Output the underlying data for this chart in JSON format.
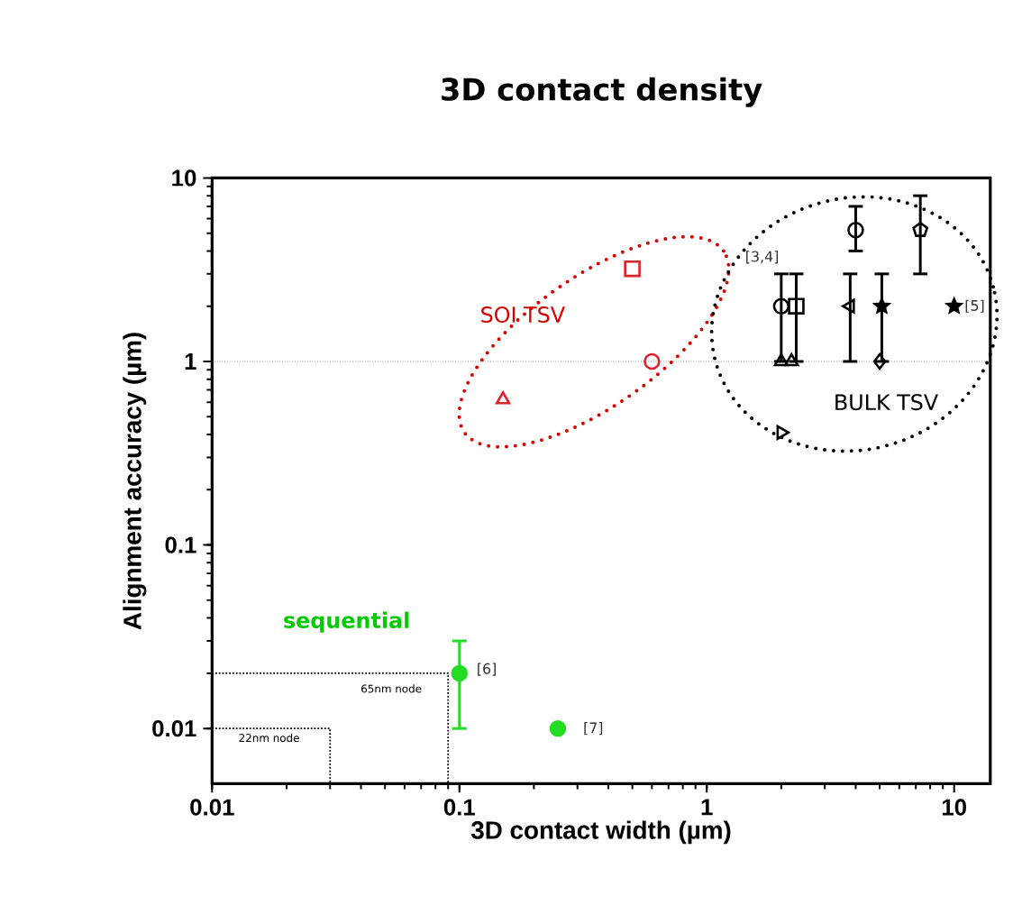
{
  "chart_data": {
    "type": "scatter",
    "title": "3D contact density",
    "xlabel": "3D contact width (µm)",
    "ylabel": "Alignment accuracy (µm)",
    "log": "xy",
    "xlim": [
      0.01,
      14
    ],
    "ylim": [
      0.005,
      10
    ],
    "xticks": [
      0.01,
      0.1,
      1,
      10
    ],
    "yticks": [
      0.01,
      0.1,
      1,
      10
    ],
    "ref_lines": [
      {
        "axis": "y",
        "value": 1,
        "color": "#555555",
        "line_style": "dotted"
      }
    ],
    "series": [
      {
        "color": "#e0202a",
        "marker": "triangle",
        "x": [
          0.15
        ],
        "values": [
          0.62
        ]
      },
      {
        "color": "#e0202a",
        "marker": "square",
        "x": [
          0.5
        ],
        "values": [
          3.2
        ]
      },
      {
        "color": "#e0202a",
        "marker": "circle",
        "x": [
          0.6
        ],
        "values": [
          1
        ]
      },
      {
        "color": "#000000",
        "marker": "circle",
        "x": [
          2
        ],
        "values": [
          2
        ],
        "errors": [
          [
            1,
            3
          ]
        ]
      },
      {
        "color": "#000000",
        "marker": "square",
        "x": [
          2.3
        ],
        "values": [
          2
        ],
        "errors": [
          [
            1,
            3
          ]
        ]
      },
      {
        "color": "#000000",
        "marker": "triangle",
        "x": [
          2,
          2.2
        ],
        "values": [
          1,
          1
        ]
      },
      {
        "color": "#000000",
        "marker": "triangle-left",
        "x": [
          3.8
        ],
        "values": [
          2
        ],
        "errors": [
          [
            1,
            3
          ]
        ]
      },
      {
        "color": "#000000",
        "marker": "star",
        "x": [
          5.1
        ],
        "values": [
          2
        ],
        "errors": [
          [
            1,
            3
          ]
        ]
      },
      {
        "color": "#000000",
        "marker": "diamond",
        "x": [
          5
        ],
        "values": [
          1
        ]
      },
      {
        "color": "#000000",
        "marker": "circle",
        "x": [
          4
        ],
        "values": [
          5.2
        ],
        "errors": [
          [
            4,
            7
          ]
        ]
      },
      {
        "color": "#000000",
        "x": [
          7.3
        ],
        "values": [
          5.2
        ],
        "errors": [
          [
            3,
            8
          ]
        ]
      },
      {
        "color": "#000000",
        "marker": "star",
        "x": [
          10
        ],
        "values": [
          2
        ]
      },
      {
        "color": "#000000",
        "marker": "triangle-right",
        "x": [
          2
        ],
        "values": [
          0.41
        ]
      },
      {
        "color": "#22dd22",
        "marker": "filled circle",
        "x": [
          0.1
        ],
        "values": [
          0.02
        ],
        "errors": [
          [
            0.01,
            0.03
          ]
        ]
      },
      {
        "color": "#22dd22",
        "marker": "filled circle",
        "x": [
          0.25
        ],
        "values": [
          0.01
        ]
      },
      {
        "type": "line",
        "color": "#000000",
        "marker": "none",
        "line_style": "dotted",
        "x": [
          0.01,
          0.09,
          0.09
        ],
        "values": [
          0.02,
          0.02,
          0.005
        ]
      },
      {
        "type": "line",
        "color": "#000000",
        "marker": "none",
        "line_style": "dotted",
        "x": [
          0.01,
          0.03,
          0.03
        ],
        "values": [
          0.01,
          0.01,
          0.005
        ]
      }
    ],
    "annotations": [
      "SOI TSV",
      "BULK TSV",
      "sequential",
      "[3,4]",
      "[5]",
      "[6]",
      "[7]",
      "65nm node",
      "22nm node"
    ]
  }
}
